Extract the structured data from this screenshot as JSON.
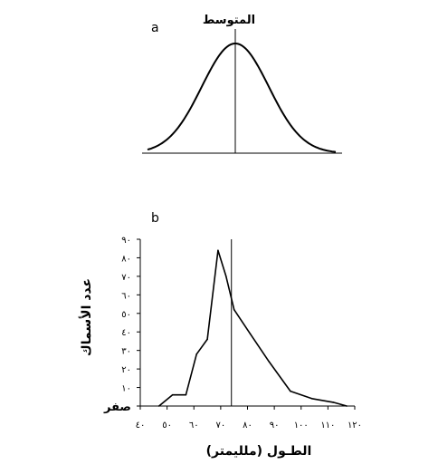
{
  "panel_a": {
    "letter": "a",
    "mean_label": "المتوسط"
  },
  "panel_b": {
    "letter": "b",
    "zero_label": "صفر"
  },
  "chart_data": [
    {
      "type": "line",
      "title": "",
      "curve": "normal",
      "mean_label": "المتوسط",
      "xlabel": "",
      "ylabel": "",
      "axes_visible": false,
      "grid": false
    },
    {
      "type": "line",
      "title": "",
      "xlabel": "الطـول (ملليمتر)",
      "ylabel": "عدد الأسماك",
      "xlim": [
        40,
        120
      ],
      "ylim": [
        0,
        90
      ],
      "x_ticks": [
        40,
        50,
        60,
        70,
        80,
        90,
        100,
        110,
        120
      ],
      "x_tick_labels": [
        "٤٠",
        "٥٠",
        "٦٠",
        "٧٠",
        "٨٠",
        "٩٠",
        "١٠٠",
        "١١٠",
        "١٢٠"
      ],
      "y_ticks": [
        0,
        10,
        20,
        30,
        40,
        50,
        60,
        70,
        80,
        90
      ],
      "y_tick_labels": [
        "صفر",
        "١٠",
        "٢٠",
        "٣٠",
        "٤٠",
        "٥٠",
        "٦٠",
        "٧٠",
        "٨٠",
        "٩٠"
      ],
      "x": [
        47,
        52,
        57,
        61,
        65,
        69,
        72,
        75,
        81,
        88,
        96,
        104,
        112,
        117
      ],
      "y": [
        0,
        6,
        6,
        28,
        36,
        84,
        70,
        52,
        39,
        24,
        8,
        4,
        2,
        0
      ],
      "mean_x": 74,
      "grid": false
    }
  ]
}
